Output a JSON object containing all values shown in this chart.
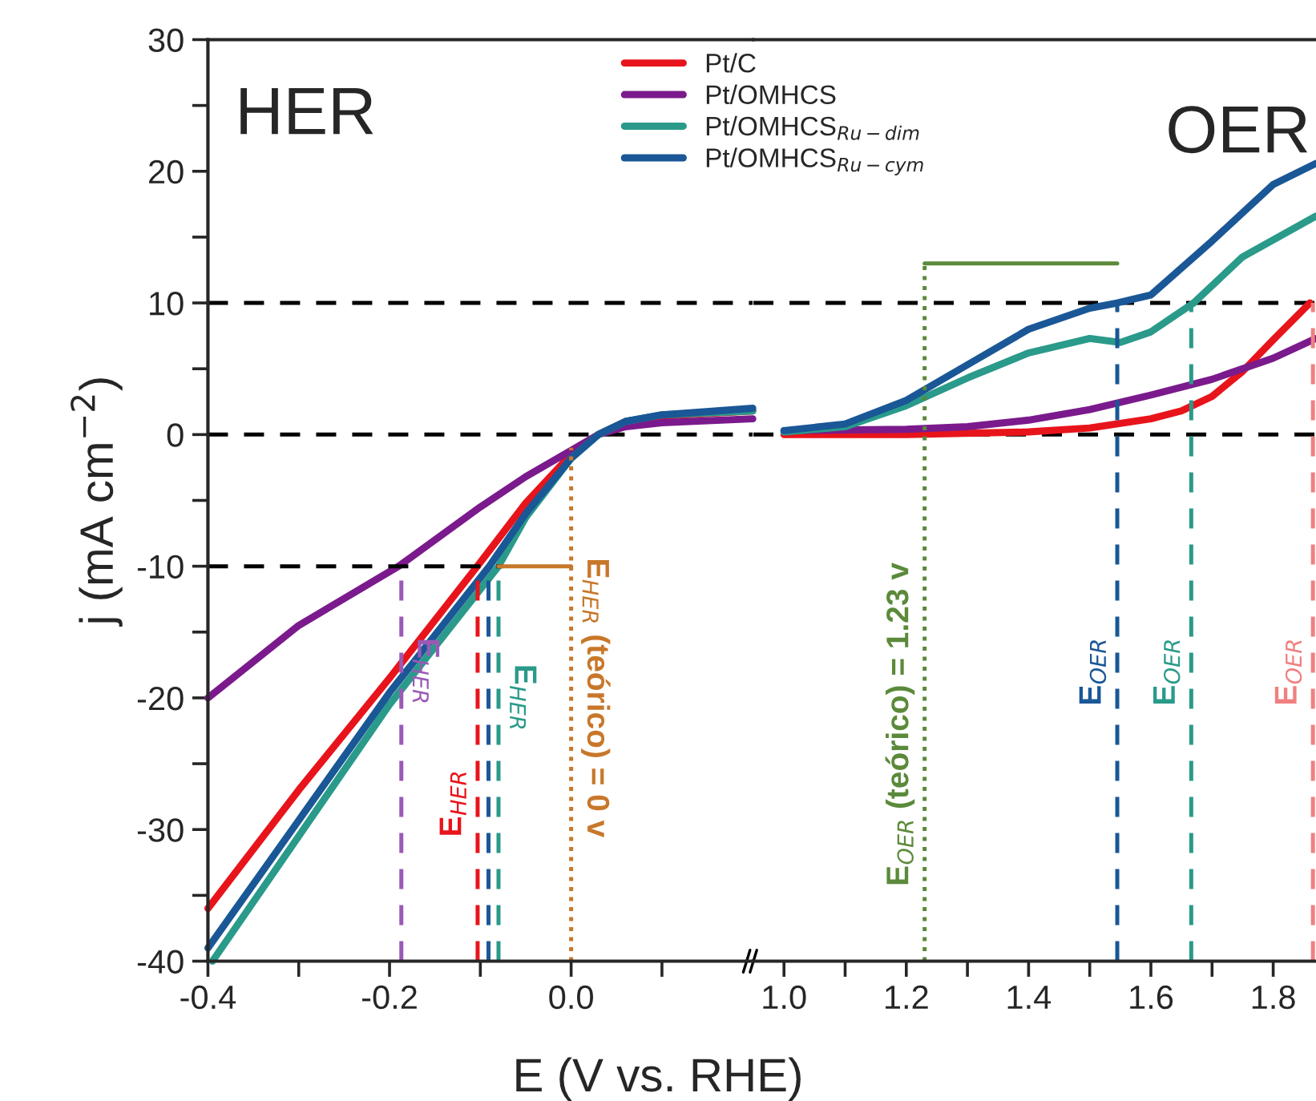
{
  "chart_data": [
    {
      "type": "line",
      "xlabel": "E (V vs. RHE)",
      "ylabel": "j (mA cm$^{−2}$)",
      "xlim": [
        -0.4,
        0.2
      ],
      "ylim": [
        -40,
        30
      ],
      "xticks": [
        -0.4,
        {
          "value": -0.3,
          "label": null
        },
        -0.2,
        {
          "value": -0.1,
          "label": null
        },
        {
          "value": 0,
          "label": "0.0"
        },
        {
          "value": 0.1,
          "label": null
        }
      ],
      "yticks": [
        -40,
        {
          "value": -35,
          "label": null
        },
        -30,
        {
          "value": -25,
          "label": null
        },
        -20,
        {
          "value": -15,
          "label": null
        },
        -10,
        {
          "value": -5,
          "label": null
        },
        0,
        {
          "value": 5,
          "label": null
        },
        10,
        {
          "value": 15,
          "label": null
        },
        20,
        {
          "value": 25,
          "label": null
        },
        30
      ],
      "legend": "top right",
      "grid": false,
      "series": [
        {
          "name": "Pt/C",
          "color": "#e8141b",
          "x": [
            -0.4,
            -0.3,
            -0.2,
            -0.1,
            -0.05,
            0.0,
            0.03,
            0.06,
            0.1,
            0.2
          ],
          "values": [
            -36,
            -27,
            -18.5,
            -9.7,
            -5.2,
            -1.5,
            0,
            1.0,
            1.4,
            1.8
          ]
        },
        {
          "name": "Pt/OMHCS",
          "color": "#7b1a8c",
          "x": [
            -0.4,
            -0.3,
            -0.19,
            -0.1,
            -0.05,
            0.0,
            0.03,
            0.06,
            0.1,
            0.2
          ],
          "values": [
            -20,
            -14.5,
            -10,
            -5.5,
            -3.2,
            -1.2,
            0,
            0.6,
            0.9,
            1.2
          ]
        },
        {
          "name": "Pt/OMHCS$_{Ru−dim}$",
          "color": "#2a9a8a",
          "x": [
            -0.395,
            -0.3,
            -0.2,
            -0.08,
            -0.05,
            0.0,
            0.03,
            0.06,
            0.1,
            0.2
          ],
          "values": [
            -40,
            -30.5,
            -20.5,
            -10,
            -6.3,
            -1.8,
            0,
            1.0,
            1.5,
            1.8
          ]
        },
        {
          "name": "Pt/OMHCS$_{Ru−cym}$",
          "color": "#1a5796",
          "x": [
            -0.4,
            -0.3,
            -0.2,
            -0.09,
            -0.05,
            0.0,
            0.03,
            0.06,
            0.1,
            0.2
          ],
          "values": [
            -39,
            -29.3,
            -19.6,
            -10,
            -6,
            -1.8,
            0,
            1.0,
            1.5,
            2.0
          ]
        },
        {
          "color": "#000000",
          "line_style": "dashed",
          "x": [
            -0.4,
            -0.075
          ],
          "values": [
            -10,
            -10
          ]
        },
        {
          "color": "#9b59b6",
          "line_style": "dashed",
          "x": [
            -0.187,
            -0.187
          ],
          "values": [
            -40,
            -10
          ]
        },
        {
          "color": "#e8141b",
          "line_style": "dashed",
          "x": [
            -0.103,
            -0.103
          ],
          "values": [
            -40,
            -10
          ]
        },
        {
          "color": "#1a5796",
          "line_style": "dashed",
          "x": [
            -0.091,
            -0.091
          ],
          "values": [
            -40,
            -10
          ]
        },
        {
          "color": "#2a9a8a",
          "line_style": "dashed",
          "x": [
            -0.08,
            -0.08
          ],
          "values": [
            -40,
            -10
          ]
        },
        {
          "color": "#c8772a",
          "line_style": "dotted",
          "x": [
            0.0,
            0.0
          ],
          "values": [
            -40,
            -1
          ]
        },
        {
          "color": "#c8772a",
          "line_style": "solid",
          "x": [
            -0.08,
            0.0
          ],
          "values": [
            -10,
            -10
          ]
        }
      ],
      "ref_lines": [
        {
          "axis": "y",
          "value": 0,
          "color": "#000000",
          "line_style": "dashed"
        },
        {
          "axis": "y",
          "value": 10,
          "color": "#000000",
          "line_style": "dashed"
        }
      ],
      "annotations": [
        "HER",
        {
          "text": "E$_{HER}$",
          "x": -0.187,
          "y": -18
        },
        {
          "text": "E$_{HER}$",
          "x": -0.103,
          "y": -28
        },
        {
          "text": "E$_{HER}$",
          "x": -0.08,
          "y": -20
        },
        {
          "text": "E$_{HER}$ (teórico) = 0 v",
          "x": 0.0,
          "y": -20
        }
      ]
    },
    {
      "type": "line",
      "xlim": [
        0.95,
        1.87
      ],
      "ylim": [
        -40,
        30
      ],
      "tick_labels": "x",
      "grid": false,
      "xticks": [
        {
          "value": 1.0,
          "label": "1.0"
        },
        {
          "value": 1.1,
          "label": null
        },
        1.2,
        {
          "value": 1.3,
          "label": null
        },
        1.4,
        {
          "value": 1.5,
          "label": null
        },
        1.6,
        {
          "value": 1.7,
          "label": null
        },
        1.8
      ],
      "series": [
        {
          "color": "#e8141b",
          "x": [
            1.0,
            1.2,
            1.4,
            1.5,
            1.6,
            1.65,
            1.7,
            1.75,
            1.8,
            1.86
          ],
          "values": [
            0,
            0,
            0.2,
            0.5,
            1.2,
            1.8,
            2.9,
            4.8,
            7.2,
            10
          ]
        },
        {
          "color": "#7b1a8c",
          "x": [
            1.0,
            1.2,
            1.3,
            1.4,
            1.5,
            1.6,
            1.7,
            1.8,
            1.87
          ],
          "values": [
            0.3,
            0.4,
            0.6,
            1.1,
            1.9,
            3.0,
            4.2,
            5.8,
            7.3
          ]
        },
        {
          "color": "#2a9a8a",
          "x": [
            1.0,
            1.1,
            1.2,
            1.3,
            1.4,
            1.5,
            1.55,
            1.6,
            1.67,
            1.75,
            1.87
          ],
          "values": [
            0.2,
            0.6,
            2.2,
            4.3,
            6.2,
            7.3,
            7.0,
            7.8,
            10,
            13.5,
            16.6
          ]
        },
        {
          "color": "#1a5796",
          "x": [
            1.0,
            1.1,
            1.2,
            1.3,
            1.4,
            1.5,
            1.545,
            1.6,
            1.7,
            1.8,
            1.87
          ],
          "values": [
            0.3,
            0.8,
            2.6,
            5.3,
            8.0,
            9.6,
            10,
            10.6,
            14.7,
            19.0,
            20.6
          ]
        },
        {
          "color": "#1a5796",
          "line_style": "dashed",
          "x": [
            1.545,
            1.545
          ],
          "values": [
            -40,
            10
          ]
        },
        {
          "color": "#2a9a8a",
          "line_style": "dashed",
          "x": [
            1.666,
            1.666
          ],
          "values": [
            -40,
            10
          ]
        },
        {
          "color": "#f08080",
          "line_style": "dashed",
          "x": [
            1.865,
            1.865
          ],
          "values": [
            -40,
            10
          ]
        },
        {
          "color": "#5b8a3a",
          "line_style": "dotted",
          "x": [
            1.23,
            1.23
          ],
          "values": [
            -40,
            13
          ]
        },
        {
          "color": "#5b8a3a",
          "line_style": "solid",
          "x": [
            1.23,
            1.545
          ],
          "values": [
            13,
            13
          ]
        }
      ],
      "ref_lines": [
        {
          "axis": "y",
          "value": 0,
          "color": "#000000",
          "line_style": "dashed"
        },
        {
          "axis": "y",
          "value": 10,
          "color": "#000000",
          "line_style": "dashed"
        }
      ],
      "annotations": [
        "OER",
        {
          "text": "E$_{OER}$ (teórico) = 1.23 v",
          "x": 1.23,
          "y": -22
        },
        {
          "text": "E$_{OER}$",
          "x": 1.545,
          "y": -18
        },
        {
          "text": "E$_{OER}$",
          "x": 1.666,
          "y": -18
        },
        {
          "text": "E$_{OER}$",
          "x": 1.865,
          "y": -18
        }
      ]
    }
  ]
}
